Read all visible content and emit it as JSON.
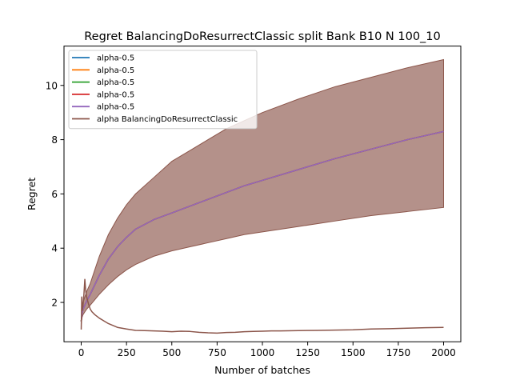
{
  "chart_data": {
    "type": "line",
    "title": "Regret BalancingDoResurrectClassic split Bank B10 N 100_10",
    "xlabel": "Number of batches",
    "ylabel": "Regret",
    "xlim": [
      -95,
      2095
    ],
    "ylim": [
      0.55,
      11.45
    ],
    "xticks": [
      0,
      250,
      500,
      750,
      1000,
      1250,
      1500,
      1750,
      2000
    ],
    "xtick_labels": [
      "0",
      "250",
      "500",
      "750",
      "1000",
      "1250",
      "1500",
      "1750",
      "2000"
    ],
    "yticks": [
      2,
      4,
      6,
      8,
      10
    ],
    "ytick_labels": [
      "2",
      "4",
      "6",
      "8",
      "10"
    ],
    "grid": false,
    "legend_position": "top-left",
    "series": [
      {
        "name": "alpha-0.5",
        "color": "#1f77b4",
        "x": [
          0,
          5,
          10,
          20,
          30,
          50,
          75,
          100,
          150,
          200,
          250,
          300,
          400,
          500,
          600,
          700,
          800,
          900,
          1000,
          1200,
          1400,
          1600,
          1800,
          2000
        ],
        "y": [
          1.3,
          1.6,
          1.75,
          1.9,
          2.05,
          2.3,
          2.65,
          3.0,
          3.6,
          4.05,
          4.4,
          4.7,
          5.05,
          5.3,
          5.55,
          5.8,
          6.05,
          6.3,
          6.5,
          6.9,
          7.3,
          7.65,
          8.0,
          8.3
        ]
      },
      {
        "name": "alpha-0.5",
        "color": "#ff7f0e",
        "x": [
          0,
          5,
          10,
          20,
          30,
          50,
          75,
          100,
          150,
          200,
          250,
          300,
          400,
          500,
          600,
          700,
          800,
          900,
          1000,
          1200,
          1400,
          1600,
          1800,
          2000
        ],
        "y": [
          1.3,
          1.6,
          1.75,
          1.9,
          2.05,
          2.3,
          2.65,
          3.0,
          3.6,
          4.05,
          4.4,
          4.7,
          5.05,
          5.3,
          5.55,
          5.8,
          6.05,
          6.3,
          6.5,
          6.9,
          7.3,
          7.65,
          8.0,
          8.3
        ]
      },
      {
        "name": "alpha-0.5",
        "color": "#2ca02c",
        "x": [
          0,
          5,
          10,
          20,
          30,
          50,
          75,
          100,
          150,
          200,
          250,
          300,
          400,
          500,
          600,
          700,
          800,
          900,
          1000,
          1200,
          1400,
          1600,
          1800,
          2000
        ],
        "y": [
          1.3,
          1.6,
          1.75,
          1.9,
          2.05,
          2.3,
          2.65,
          3.0,
          3.6,
          4.05,
          4.4,
          4.7,
          5.05,
          5.3,
          5.55,
          5.8,
          6.05,
          6.3,
          6.5,
          6.9,
          7.3,
          7.65,
          8.0,
          8.3
        ]
      },
      {
        "name": "alpha-0.5",
        "color": "#d62728",
        "x": [
          0,
          5,
          10,
          20,
          30,
          50,
          75,
          100,
          150,
          200,
          250,
          300,
          400,
          500,
          600,
          700,
          800,
          900,
          1000,
          1200,
          1400,
          1600,
          1800,
          2000
        ],
        "y": [
          1.3,
          1.6,
          1.75,
          1.9,
          2.05,
          2.3,
          2.65,
          3.0,
          3.6,
          4.05,
          4.4,
          4.7,
          5.05,
          5.3,
          5.55,
          5.8,
          6.05,
          6.3,
          6.5,
          6.9,
          7.3,
          7.65,
          8.0,
          8.3
        ]
      },
      {
        "name": "alpha-0.5",
        "color": "#9467bd",
        "x": [
          0,
          5,
          10,
          20,
          30,
          50,
          75,
          100,
          150,
          200,
          250,
          300,
          400,
          500,
          600,
          700,
          800,
          900,
          1000,
          1200,
          1400,
          1600,
          1800,
          2000
        ],
        "y": [
          1.3,
          1.6,
          1.75,
          1.9,
          2.05,
          2.3,
          2.65,
          3.0,
          3.6,
          4.05,
          4.4,
          4.7,
          5.05,
          5.3,
          5.55,
          5.8,
          6.05,
          6.3,
          6.5,
          6.9,
          7.3,
          7.65,
          8.0,
          8.3
        ]
      },
      {
        "name": "alpha BalancingDoResurrectClassic",
        "color": "#8c564b",
        "x": [
          0,
          3,
          6,
          10,
          15,
          20,
          25,
          30,
          40,
          50,
          60,
          75,
          100,
          125,
          150,
          200,
          250,
          300,
          350,
          400,
          450,
          500,
          550,
          600,
          650,
          700,
          750,
          800,
          850,
          900,
          950,
          1000,
          1050,
          1100,
          1200,
          1300,
          1400,
          1500,
          1600,
          1700,
          1800,
          1900,
          2000
        ],
        "y": [
          1.0,
          2.2,
          1.7,
          1.9,
          2.3,
          2.85,
          2.4,
          2.2,
          1.95,
          1.75,
          1.65,
          1.55,
          1.42,
          1.32,
          1.22,
          1.08,
          1.02,
          0.97,
          0.96,
          0.95,
          0.94,
          0.92,
          0.94,
          0.93,
          0.9,
          0.88,
          0.87,
          0.89,
          0.9,
          0.92,
          0.93,
          0.94,
          0.95,
          0.95,
          0.96,
          0.97,
          0.98,
          0.99,
          1.02,
          1.03,
          1.05,
          1.07,
          1.08
        ]
      }
    ],
    "band": {
      "color": "#8c564b",
      "opacity": 0.65,
      "x": [
        0,
        5,
        10,
        20,
        30,
        50,
        75,
        100,
        150,
        200,
        250,
        300,
        400,
        500,
        600,
        700,
        800,
        900,
        1000,
        1200,
        1400,
        1600,
        1800,
        2000
      ],
      "lower": [
        1.2,
        1.45,
        1.55,
        1.65,
        1.75,
        1.9,
        2.1,
        2.3,
        2.65,
        2.95,
        3.2,
        3.4,
        3.7,
        3.9,
        4.05,
        4.2,
        4.35,
        4.5,
        4.6,
        4.8,
        5.0,
        5.2,
        5.35,
        5.5
      ],
      "upper": [
        1.4,
        1.75,
        2.0,
        2.2,
        2.4,
        2.7,
        3.2,
        3.7,
        4.5,
        5.1,
        5.6,
        6.0,
        6.6,
        7.2,
        7.6,
        8.0,
        8.4,
        8.7,
        9.0,
        9.5,
        9.95,
        10.3,
        10.65,
        10.95
      ]
    }
  }
}
